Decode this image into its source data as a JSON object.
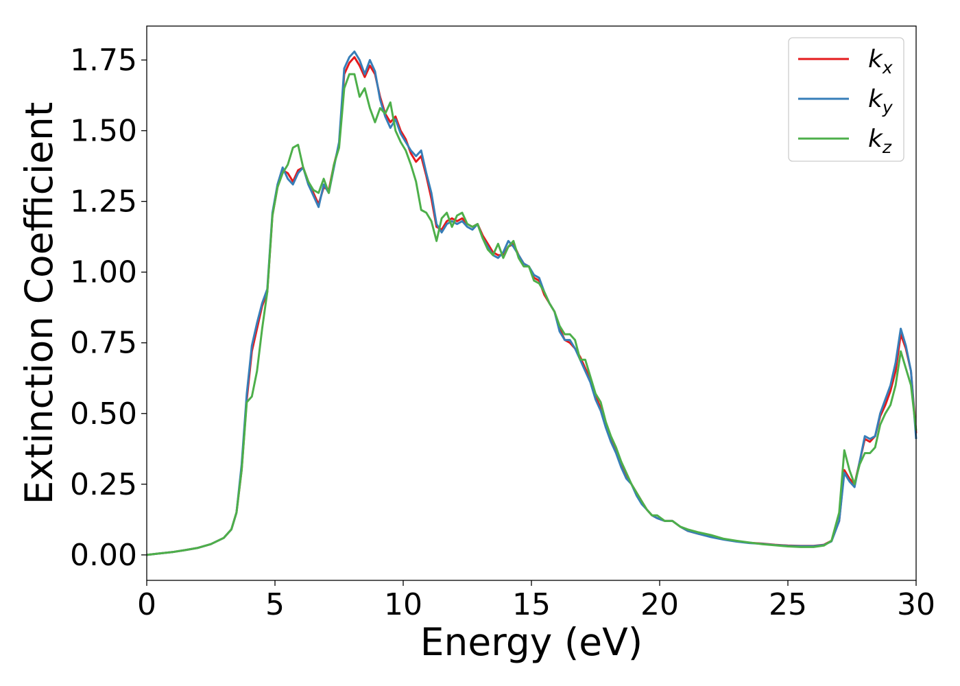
{
  "chart_data": {
    "type": "line",
    "xlabel": "Energy (eV)",
    "ylabel": "Extinction Coefficient",
    "xlim": [
      0,
      30
    ],
    "ylim": [
      -0.09,
      1.87
    ],
    "xticks": [
      0,
      5,
      10,
      15,
      20,
      25,
      30
    ],
    "yticks": [
      0.0,
      0.25,
      0.5,
      0.75,
      1.0,
      1.25,
      1.5,
      1.75
    ],
    "xtick_labels": [
      "0",
      "5",
      "10",
      "15",
      "20",
      "25",
      "30"
    ],
    "ytick_labels": [
      "0.00",
      "0.25",
      "0.50",
      "0.75",
      "1.00",
      "1.25",
      "1.50",
      "1.75"
    ],
    "grid": false,
    "legend_position": "top-right",
    "x": [
      0,
      0.5,
      1,
      1.5,
      2,
      2.5,
      3,
      3.3,
      3.5,
      3.7,
      3.9,
      4.1,
      4.3,
      4.5,
      4.7,
      4.9,
      5.1,
      5.3,
      5.5,
      5.7,
      5.9,
      6.1,
      6.3,
      6.5,
      6.7,
      6.9,
      7.1,
      7.3,
      7.5,
      7.7,
      7.9,
      8.1,
      8.3,
      8.5,
      8.7,
      8.9,
      9.1,
      9.3,
      9.5,
      9.7,
      9.9,
      10.1,
      10.3,
      10.5,
      10.7,
      10.9,
      11.1,
      11.3,
      11.5,
      11.7,
      11.9,
      12.1,
      12.3,
      12.5,
      12.7,
      12.9,
      13.1,
      13.3,
      13.5,
      13.7,
      13.9,
      14.1,
      14.3,
      14.5,
      14.7,
      14.9,
      15.1,
      15.3,
      15.5,
      15.7,
      15.9,
      16.1,
      16.3,
      16.5,
      16.7,
      16.9,
      17.1,
      17.3,
      17.5,
      17.7,
      17.9,
      18.1,
      18.3,
      18.5,
      18.7,
      18.9,
      19.1,
      19.3,
      19.5,
      19.7,
      19.9,
      20.2,
      20.5,
      20.8,
      21.1,
      21.5,
      22,
      22.5,
      23,
      23.5,
      24,
      24.5,
      25,
      25.5,
      26,
      26.4,
      26.7,
      27,
      27.2,
      27.4,
      27.6,
      27.8,
      28,
      28.2,
      28.4,
      28.6,
      28.8,
      29,
      29.2,
      29.4,
      29.6,
      29.8,
      30
    ],
    "series": [
      {
        "name": "k",
        "subscript": "x",
        "color": "#e41a1c",
        "values": [
          0,
          0.005,
          0.01,
          0.017,
          0.025,
          0.038,
          0.06,
          0.09,
          0.15,
          0.3,
          0.55,
          0.72,
          0.8,
          0.88,
          0.93,
          1.2,
          1.3,
          1.36,
          1.35,
          1.32,
          1.36,
          1.37,
          1.32,
          1.28,
          1.24,
          1.3,
          1.29,
          1.38,
          1.45,
          1.7,
          1.74,
          1.76,
          1.73,
          1.69,
          1.73,
          1.7,
          1.62,
          1.56,
          1.53,
          1.55,
          1.5,
          1.47,
          1.42,
          1.39,
          1.41,
          1.34,
          1.26,
          1.16,
          1.15,
          1.18,
          1.19,
          1.18,
          1.19,
          1.17,
          1.16,
          1.17,
          1.13,
          1.1,
          1.07,
          1.06,
          1.06,
          1.09,
          1.1,
          1.06,
          1.03,
          1.02,
          0.98,
          0.97,
          0.92,
          0.89,
          0.86,
          0.8,
          0.76,
          0.75,
          0.73,
          0.7,
          0.66,
          0.62,
          0.56,
          0.52,
          0.46,
          0.41,
          0.37,
          0.32,
          0.28,
          0.25,
          0.22,
          0.19,
          0.16,
          0.14,
          0.13,
          0.12,
          0.12,
          0.1,
          0.085,
          0.075,
          0.065,
          0.055,
          0.048,
          0.043,
          0.04,
          0.036,
          0.033,
          0.032,
          0.032,
          0.036,
          0.05,
          0.12,
          0.3,
          0.27,
          0.25,
          0.33,
          0.41,
          0.4,
          0.42,
          0.49,
          0.53,
          0.58,
          0.65,
          0.78,
          0.73,
          0.65,
          0.43
        ]
      },
      {
        "name": "k",
        "subscript": "y",
        "color": "#377eb8",
        "values": [
          0,
          0.005,
          0.01,
          0.017,
          0.025,
          0.038,
          0.06,
          0.09,
          0.15,
          0.32,
          0.57,
          0.74,
          0.82,
          0.89,
          0.94,
          1.21,
          1.31,
          1.37,
          1.33,
          1.31,
          1.35,
          1.37,
          1.31,
          1.27,
          1.23,
          1.31,
          1.28,
          1.37,
          1.46,
          1.72,
          1.76,
          1.78,
          1.75,
          1.7,
          1.75,
          1.71,
          1.61,
          1.55,
          1.51,
          1.54,
          1.49,
          1.46,
          1.43,
          1.41,
          1.43,
          1.35,
          1.28,
          1.17,
          1.14,
          1.17,
          1.18,
          1.17,
          1.18,
          1.16,
          1.15,
          1.17,
          1.12,
          1.09,
          1.06,
          1.05,
          1.07,
          1.11,
          1.09,
          1.06,
          1.03,
          1.02,
          0.99,
          0.98,
          0.93,
          0.89,
          0.86,
          0.79,
          0.76,
          0.76,
          0.73,
          0.69,
          0.65,
          0.61,
          0.55,
          0.51,
          0.45,
          0.4,
          0.36,
          0.31,
          0.27,
          0.25,
          0.21,
          0.18,
          0.16,
          0.14,
          0.13,
          0.12,
          0.12,
          0.1,
          0.085,
          0.075,
          0.063,
          0.054,
          0.047,
          0.042,
          0.039,
          0.035,
          0.032,
          0.031,
          0.031,
          0.035,
          0.048,
          0.12,
          0.29,
          0.26,
          0.24,
          0.33,
          0.42,
          0.41,
          0.42,
          0.5,
          0.55,
          0.6,
          0.68,
          0.8,
          0.74,
          0.65,
          0.41
        ]
      },
      {
        "name": "k",
        "subscript": "z",
        "color": "#4daf4a",
        "values": [
          0,
          0.005,
          0.01,
          0.017,
          0.025,
          0.038,
          0.06,
          0.09,
          0.15,
          0.3,
          0.54,
          0.56,
          0.65,
          0.8,
          0.93,
          1.2,
          1.3,
          1.35,
          1.38,
          1.44,
          1.45,
          1.37,
          1.32,
          1.29,
          1.28,
          1.33,
          1.28,
          1.38,
          1.44,
          1.65,
          1.7,
          1.7,
          1.62,
          1.65,
          1.58,
          1.53,
          1.58,
          1.56,
          1.6,
          1.5,
          1.46,
          1.43,
          1.38,
          1.32,
          1.22,
          1.21,
          1.18,
          1.11,
          1.19,
          1.21,
          1.16,
          1.2,
          1.21,
          1.17,
          1.16,
          1.17,
          1.12,
          1.08,
          1.06,
          1.1,
          1.05,
          1.09,
          1.11,
          1.05,
          1.02,
          1.02,
          0.97,
          0.96,
          0.93,
          0.89,
          0.86,
          0.81,
          0.78,
          0.78,
          0.76,
          0.69,
          0.69,
          0.63,
          0.57,
          0.54,
          0.47,
          0.42,
          0.38,
          0.33,
          0.29,
          0.25,
          0.22,
          0.19,
          0.16,
          0.14,
          0.14,
          0.12,
          0.12,
          0.1,
          0.09,
          0.08,
          0.07,
          0.057,
          0.05,
          0.044,
          0.038,
          0.034,
          0.03,
          0.028,
          0.028,
          0.033,
          0.05,
          0.15,
          0.37,
          0.3,
          0.25,
          0.32,
          0.36,
          0.36,
          0.38,
          0.46,
          0.5,
          0.53,
          0.6,
          0.72,
          0.66,
          0.6,
          0.44
        ]
      }
    ]
  }
}
